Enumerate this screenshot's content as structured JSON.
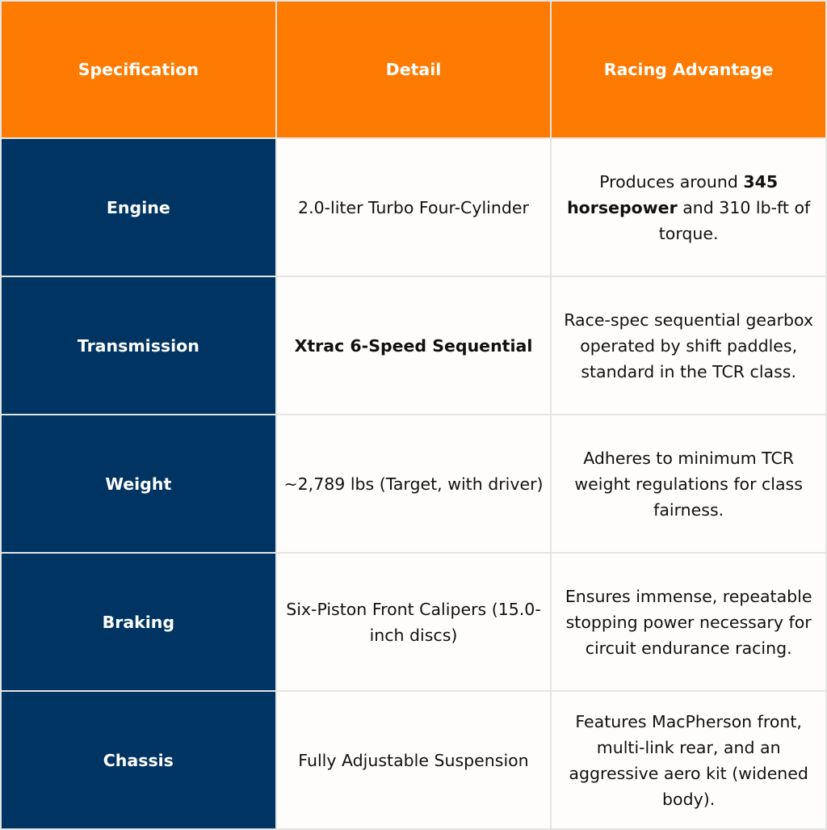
{
  "colors": {
    "header": "#ff7a00",
    "spec_column": "#003463",
    "body": "#fefdfb",
    "grid": "#e4e4e2"
  },
  "headers": [
    "Specification",
    "Detail",
    "Racing Advantage"
  ],
  "rows": [
    {
      "spec": "Engine",
      "detail": {
        "pre": "2.0-liter Turbo Four-Cylinder",
        "bold": "",
        "post": ""
      },
      "advantage": {
        "pre": "Produces around ",
        "bold": "345 horsepower",
        "post": " and 310 lb-ft of torque."
      }
    },
    {
      "spec": "Transmission",
      "detail": {
        "pre": "",
        "bold": "Xtrac 6-Speed Sequential",
        "post": ""
      },
      "advantage": {
        "pre": "Race-spec sequential gearbox operated by shift paddles, standard in the TCR class.",
        "bold": "",
        "post": ""
      }
    },
    {
      "spec": "Weight",
      "detail": {
        "pre": "~2,789 lbs (Target, with driver)",
        "bold": "",
        "post": ""
      },
      "advantage": {
        "pre": "Adheres to minimum TCR weight regulations for class fairness.",
        "bold": "",
        "post": ""
      }
    },
    {
      "spec": "Braking",
      "detail": {
        "pre": "Six-Piston Front Calipers (15.0-inch discs)",
        "bold": "",
        "post": ""
      },
      "advantage": {
        "pre": "Ensures immense, repeatable stopping power necessary for circuit endurance racing.",
        "bold": "",
        "post": ""
      }
    },
    {
      "spec": "Chassis",
      "detail": {
        "pre": "Fully Adjustable Suspension",
        "bold": "",
        "post": ""
      },
      "advantage": {
        "pre": "Features MacPherson front, multi-link rear, and an aggressive aero kit (widened body).",
        "bold": "",
        "post": ""
      }
    }
  ]
}
